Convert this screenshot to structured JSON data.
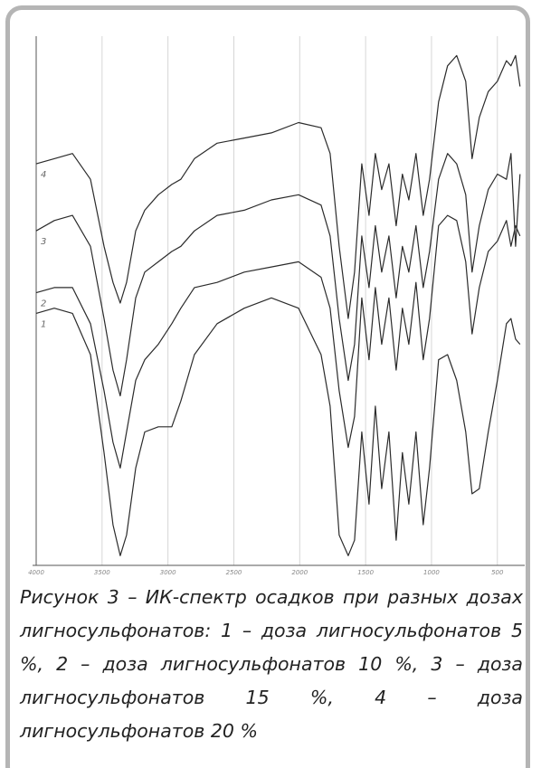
{
  "chart_data": {
    "type": "line",
    "caption": "Рисунок 3 – ИК-спектр осадков при разных дозах лигносульфонатов: 1 – доза лигносульфонатов 5 %, 2 – доза лигносульфонатов 10 %, 3 – доза лигносульфонатов 15 %, 4 – доза лигносульфонатов 20 %",
    "x": [
      4000,
      3863,
      3725,
      3588,
      3485,
      3417,
      3362,
      3314,
      3245,
      3176,
      3073,
      2971,
      2902,
      2799,
      2627,
      2421,
      2215,
      2009,
      1838,
      1769,
      1701,
      1632,
      1584,
      1529,
      1474,
      1426,
      1378,
      1323,
      1268,
      1221,
      1172,
      1118,
      1063,
      1015,
      946,
      878,
      809,
      740,
      692,
      637,
      569,
      500,
      431,
      397,
      362,
      328
    ],
    "xlim": [
      4000,
      320
    ],
    "xticks": [
      4000,
      3500,
      3000,
      2500,
      2000,
      1500,
      1000,
      500
    ],
    "ylim": [
      0,
      100
    ],
    "grid": true,
    "series": [
      {
        "name": "1",
        "color": "#2b2b2b",
        "values": [
          48,
          49,
          48,
          40,
          21,
          7,
          1,
          5,
          18,
          25,
          26,
          26,
          31,
          40,
          46,
          49,
          51,
          49,
          40,
          30,
          5,
          1,
          4,
          25,
          11,
          30,
          14,
          25,
          4,
          21,
          11,
          25,
          7,
          18,
          39,
          40,
          35,
          25,
          13,
          14,
          25,
          35,
          46,
          47,
          43,
          42
        ]
      },
      {
        "name": "2",
        "color": "#2b2b2b",
        "values": [
          52,
          53,
          53,
          46,
          33,
          23,
          18,
          25,
          35,
          39,
          42,
          46,
          49,
          53,
          54,
          56,
          57,
          58,
          55,
          49,
          33,
          22,
          28,
          51,
          39,
          53,
          42,
          51,
          37,
          49,
          42,
          54,
          39,
          47,
          65,
          67,
          66,
          58,
          44,
          53,
          60,
          62,
          66,
          61,
          65,
          63
        ]
      },
      {
        "name": "3",
        "color": "#2b2b2b",
        "values": [
          64,
          66,
          67,
          61,
          47,
          37,
          32,
          39,
          51,
          56,
          58,
          60,
          61,
          64,
          67,
          68,
          70,
          71,
          69,
          63,
          47,
          35,
          42,
          63,
          53,
          65,
          56,
          63,
          51,
          61,
          56,
          65,
          53,
          60,
          74,
          79,
          77,
          71,
          56,
          65,
          72,
          75,
          74,
          79,
          61,
          75
        ]
      },
      {
        "name": "4",
        "color": "#2b2b2b",
        "values": [
          77,
          78,
          79,
          74,
          61,
          54,
          50,
          54,
          64,
          68,
          71,
          73,
          74,
          78,
          81,
          82,
          83,
          85,
          84,
          79,
          61,
          47,
          56,
          77,
          67,
          79,
          72,
          77,
          65,
          75,
          70,
          79,
          67,
          74,
          89,
          96,
          98,
          93,
          78,
          86,
          91,
          93,
          97,
          96,
          98,
          92
        ]
      }
    ]
  }
}
